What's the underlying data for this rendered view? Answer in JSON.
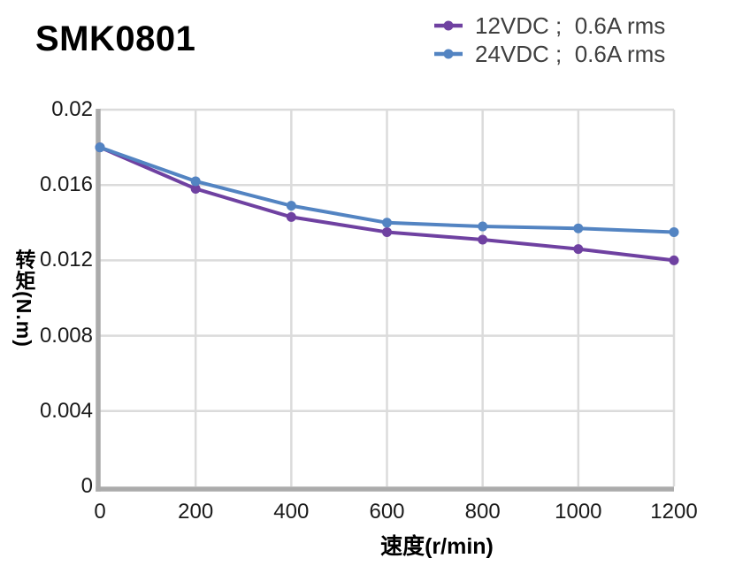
{
  "colors": {
    "background": "#ffffff",
    "axis": "#ababab",
    "grid": "#dbdbdb",
    "tick_text": "#1a1a1a",
    "legend_text": "#3f3f3f",
    "series_12vdc": "#6f41a1",
    "series_24vdc": "#5384c2"
  },
  "chart_data": {
    "type": "line",
    "title": "SMK0801",
    "xlabel": "速度(r/min)",
    "ylabel": "转矩(N.m)",
    "xlim": [
      0,
      1200
    ],
    "ylim": [
      0,
      0.02
    ],
    "grid": true,
    "legend_position": "top-right",
    "x": [
      0,
      200,
      400,
      600,
      800,
      1000,
      1200
    ],
    "xticks": [
      0,
      200,
      400,
      600,
      800,
      1000,
      1200
    ],
    "xtick_labels": [
      "0",
      "200",
      "400",
      "600",
      "800",
      "1000",
      "1200"
    ],
    "yticks": [
      0,
      0.004,
      0.008,
      0.012,
      0.016,
      0.02
    ],
    "ytick_labels": [
      "0",
      "0.004",
      "0.008",
      "0.012",
      "0.016",
      "0.02"
    ],
    "series": [
      {
        "name": "12VDC ;  0.6A rms",
        "color": "#6f41a1",
        "marker": "circle",
        "values": [
          0.018,
          0.0158,
          0.0143,
          0.0135,
          0.0131,
          0.0126,
          0.012
        ]
      },
      {
        "name": "24VDC ;  0.6A rms",
        "color": "#5384c2",
        "marker": "circle",
        "values": [
          0.018,
          0.0162,
          0.0149,
          0.014,
          0.0138,
          0.0137,
          0.0135
        ]
      }
    ]
  }
}
